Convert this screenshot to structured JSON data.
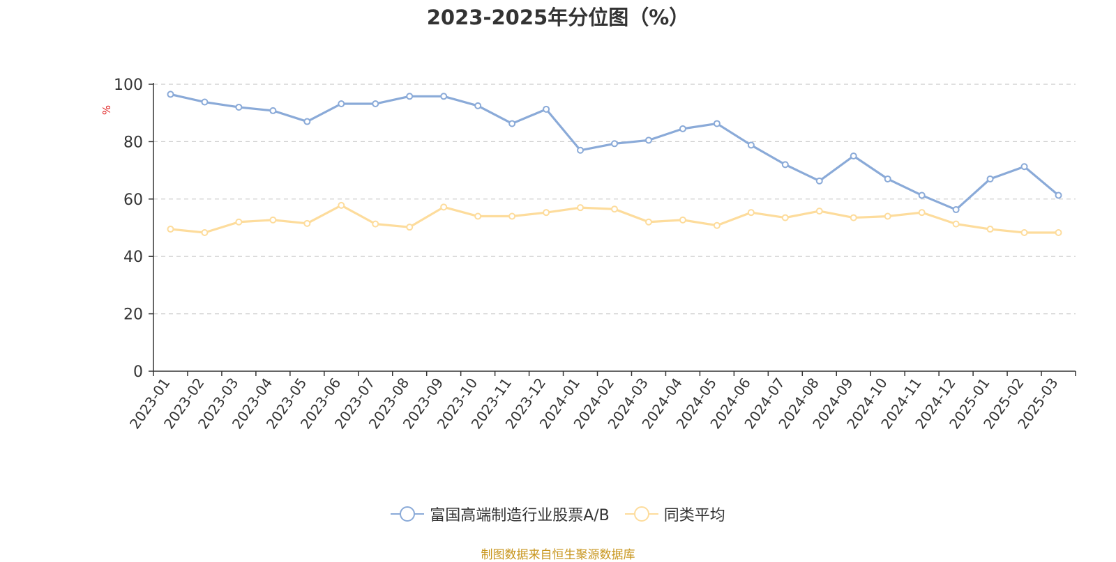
{
  "chart_data": {
    "type": "line",
    "title": "2023-2025年分位图（%）",
    "ylabel": "%",
    "xlabel": "",
    "ylim": [
      0,
      100
    ],
    "yticks": [
      0,
      20,
      40,
      60,
      80,
      100
    ],
    "grid": true,
    "legend_position": "bottom",
    "categories": [
      "2023-01",
      "2023-02",
      "2023-03",
      "2023-04",
      "2023-05",
      "2023-06",
      "2023-07",
      "2023-08",
      "2023-09",
      "2023-10",
      "2023-11",
      "2023-12",
      "2024-01",
      "2024-02",
      "2024-03",
      "2024-04",
      "2024-05",
      "2024-06",
      "2024-07",
      "2024-08",
      "2024-09",
      "2024-10",
      "2024-11",
      "2024-12",
      "2025-01",
      "2025-02",
      "2025-03"
    ],
    "series": [
      {
        "name": "富国高端制造行业股票A/B",
        "color": "#8aaad8",
        "values": [
          96.5,
          93.8,
          92.0,
          90.8,
          87.0,
          93.2,
          93.2,
          95.8,
          95.8,
          92.5,
          86.3,
          91.3,
          77.0,
          79.3,
          80.5,
          84.5,
          86.3,
          78.8,
          72.0,
          66.3,
          75.0,
          67.0,
          61.3,
          56.3,
          67.0,
          71.3,
          61.3
        ]
      },
      {
        "name": "同类平均",
        "color": "#fddc9c",
        "values": [
          49.5,
          48.3,
          52.0,
          52.7,
          51.5,
          57.8,
          51.3,
          50.2,
          57.2,
          54.0,
          54.0,
          55.3,
          57.0,
          56.5,
          52.0,
          52.7,
          50.8,
          55.3,
          53.5,
          55.8,
          53.5,
          54.0,
          55.3,
          51.3,
          49.5,
          48.3,
          48.3
        ]
      }
    ]
  },
  "source_note": "制图数据来自恒生聚源数据库"
}
